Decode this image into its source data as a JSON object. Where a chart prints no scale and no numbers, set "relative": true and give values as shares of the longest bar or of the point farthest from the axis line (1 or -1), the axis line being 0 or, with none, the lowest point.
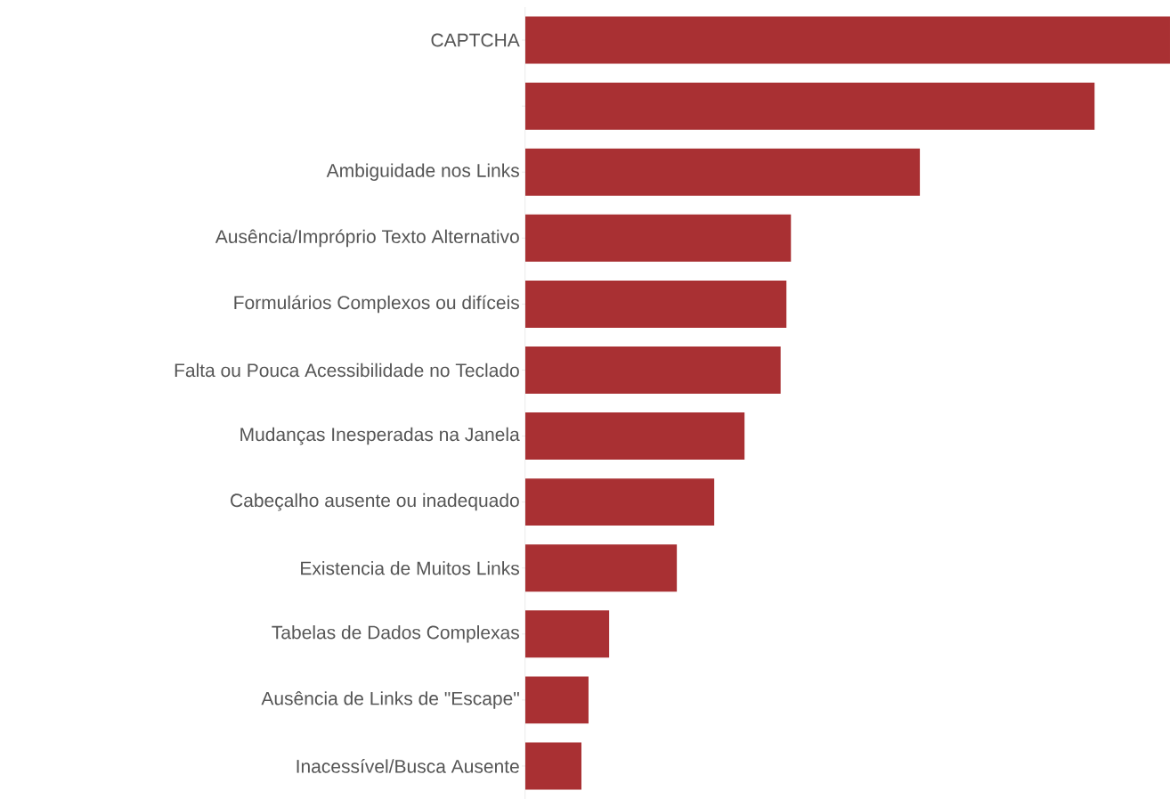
{
  "chart_data": {
    "type": "bar",
    "orientation": "horizontal",
    "relative": true,
    "color": "#a93033",
    "categories": [
      "CAPTCHA",
      null,
      "Ambiguidade nos Links",
      "Ausência/Impróprio Texto Alternativo",
      "Formulários Complexos ou difíceis",
      "Falta ou Pouca Acessibilidade no Teclado",
      "Mudanças Inesperadas na Janela",
      "Cabeçalho ausente ou inadequado",
      "Existencia de Muitos Links",
      "Tabelas de Dados Complexas",
      "Ausência de Links de \"Escape\"",
      "Inacessível/Busca Ausente"
    ],
    "values": [
      1,
      0.883,
      0.612,
      0.412,
      0.405,
      0.396,
      0.34,
      0.293,
      0.235,
      0.13,
      0.098,
      0.087
    ]
  }
}
